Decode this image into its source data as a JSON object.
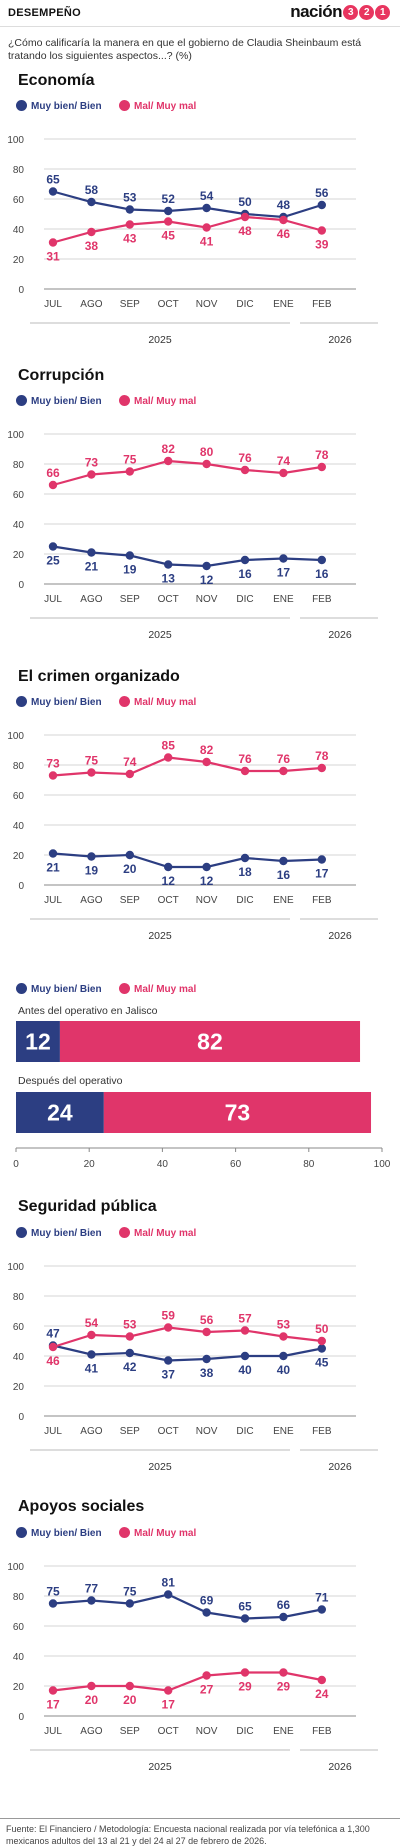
{
  "header": {
    "section": "DESEMPEÑO",
    "brand_word": "nación",
    "brand_digits": [
      "3",
      "2",
      "1"
    ]
  },
  "question": "¿Cómo calificaría la manera en que el gobierno de Claudia Sheinbaum está tratando los siguientes aspectos...? (%)",
  "legend": {
    "series1": "Muy bien/ Bien",
    "series2": "Mal/ Muy mal"
  },
  "colors": {
    "series1": "#2c3e82",
    "series2": "#e0356a"
  },
  "footer": "Fuente: El Financiero / Metodología: Encuesta nacional realizada por vía telefónica a 1,300 mexicanos adultos del 13 al 21 y del 24 al 27 de febrero de 2026.",
  "chart_data": [
    {
      "type": "line",
      "title": "Economía",
      "categories": [
        "JUL",
        "AGO",
        "SEP",
        "OCT",
        "NOV",
        "DIC",
        "ENE",
        "FEB"
      ],
      "year_labels": [
        "2025",
        "2026"
      ],
      "series": [
        {
          "name": "Muy bien/ Bien",
          "values": [
            65,
            58,
            53,
            52,
            54,
            50,
            48,
            56
          ]
        },
        {
          "name": "Mal/ Muy mal",
          "values": [
            31,
            38,
            43,
            45,
            41,
            48,
            46,
            39
          ]
        }
      ],
      "ylim": [
        0,
        100
      ],
      "yticks": [
        0,
        20,
        40,
        60,
        80,
        100
      ],
      "grid": true,
      "legend": "top-left"
    },
    {
      "type": "line",
      "title": "Corrupción",
      "categories": [
        "JUL",
        "AGO",
        "SEP",
        "OCT",
        "NOV",
        "DIC",
        "ENE",
        "FEB"
      ],
      "year_labels": [
        "2025",
        "2026"
      ],
      "series": [
        {
          "name": "Muy bien/ Bien",
          "values": [
            25,
            21,
            19,
            13,
            12,
            16,
            17,
            16
          ]
        },
        {
          "name": "Mal/ Muy mal",
          "values": [
            66,
            73,
            75,
            82,
            80,
            76,
            74,
            78
          ]
        }
      ],
      "ylim": [
        0,
        100
      ],
      "yticks": [
        0,
        20,
        40,
        60,
        80,
        100
      ],
      "grid": true,
      "legend": "top-left"
    },
    {
      "type": "line",
      "title": "El crimen organizado",
      "categories": [
        "JUL",
        "AGO",
        "SEP",
        "OCT",
        "NOV",
        "DIC",
        "ENE",
        "FEB"
      ],
      "year_labels": [
        "2025",
        "2026"
      ],
      "series": [
        {
          "name": "Muy bien/ Bien",
          "values": [
            21,
            19,
            20,
            12,
            12,
            18,
            16,
            17
          ]
        },
        {
          "name": "Mal/ Muy mal",
          "values": [
            73,
            75,
            74,
            85,
            82,
            76,
            76,
            78
          ]
        }
      ],
      "ylim": [
        0,
        100
      ],
      "yticks": [
        0,
        20,
        40,
        60,
        80,
        100
      ],
      "grid": true,
      "legend": "top-left"
    },
    {
      "type": "bar",
      "orientation": "horizontal-stacked",
      "categories": [
        "Antes del operativo en Jalisco",
        "Después del operativo"
      ],
      "series": [
        {
          "name": "Muy bien/ Bien",
          "values": [
            12,
            24
          ]
        },
        {
          "name": "Mal/ Muy mal",
          "values": [
            82,
            73
          ]
        }
      ],
      "xlim": [
        0,
        100
      ],
      "xticks": [
        0,
        20,
        40,
        60,
        80,
        100
      ],
      "legend": "top-left"
    },
    {
      "type": "line",
      "title": "Seguridad pública",
      "categories": [
        "JUL",
        "AGO",
        "SEP",
        "OCT",
        "NOV",
        "DIC",
        "ENE",
        "FEB"
      ],
      "year_labels": [
        "2025",
        "2026"
      ],
      "series": [
        {
          "name": "Muy bien/ Bien",
          "values": [
            47,
            41,
            42,
            37,
            38,
            40,
            40,
            45
          ]
        },
        {
          "name": "Mal/ Muy mal",
          "values": [
            46,
            54,
            53,
            59,
            56,
            57,
            53,
            50
          ]
        }
      ],
      "ylim": [
        0,
        100
      ],
      "yticks": [
        0,
        20,
        40,
        60,
        80,
        100
      ],
      "grid": true,
      "legend": "top-left"
    },
    {
      "type": "line",
      "title": "Apoyos sociales",
      "categories": [
        "JUL",
        "AGO",
        "SEP",
        "OCT",
        "NOV",
        "DIC",
        "ENE",
        "FEB"
      ],
      "year_labels": [
        "2025",
        "2026"
      ],
      "series": [
        {
          "name": "Muy bien/ Bien",
          "values": [
            75,
            77,
            75,
            81,
            69,
            65,
            66,
            71
          ]
        },
        {
          "name": "Mal/ Muy mal",
          "values": [
            17,
            20,
            20,
            17,
            27,
            29,
            29,
            24
          ]
        }
      ],
      "ylim": [
        0,
        100
      ],
      "yticks": [
        0,
        20,
        40,
        60,
        80,
        100
      ],
      "grid": true,
      "legend": "top-left"
    }
  ]
}
